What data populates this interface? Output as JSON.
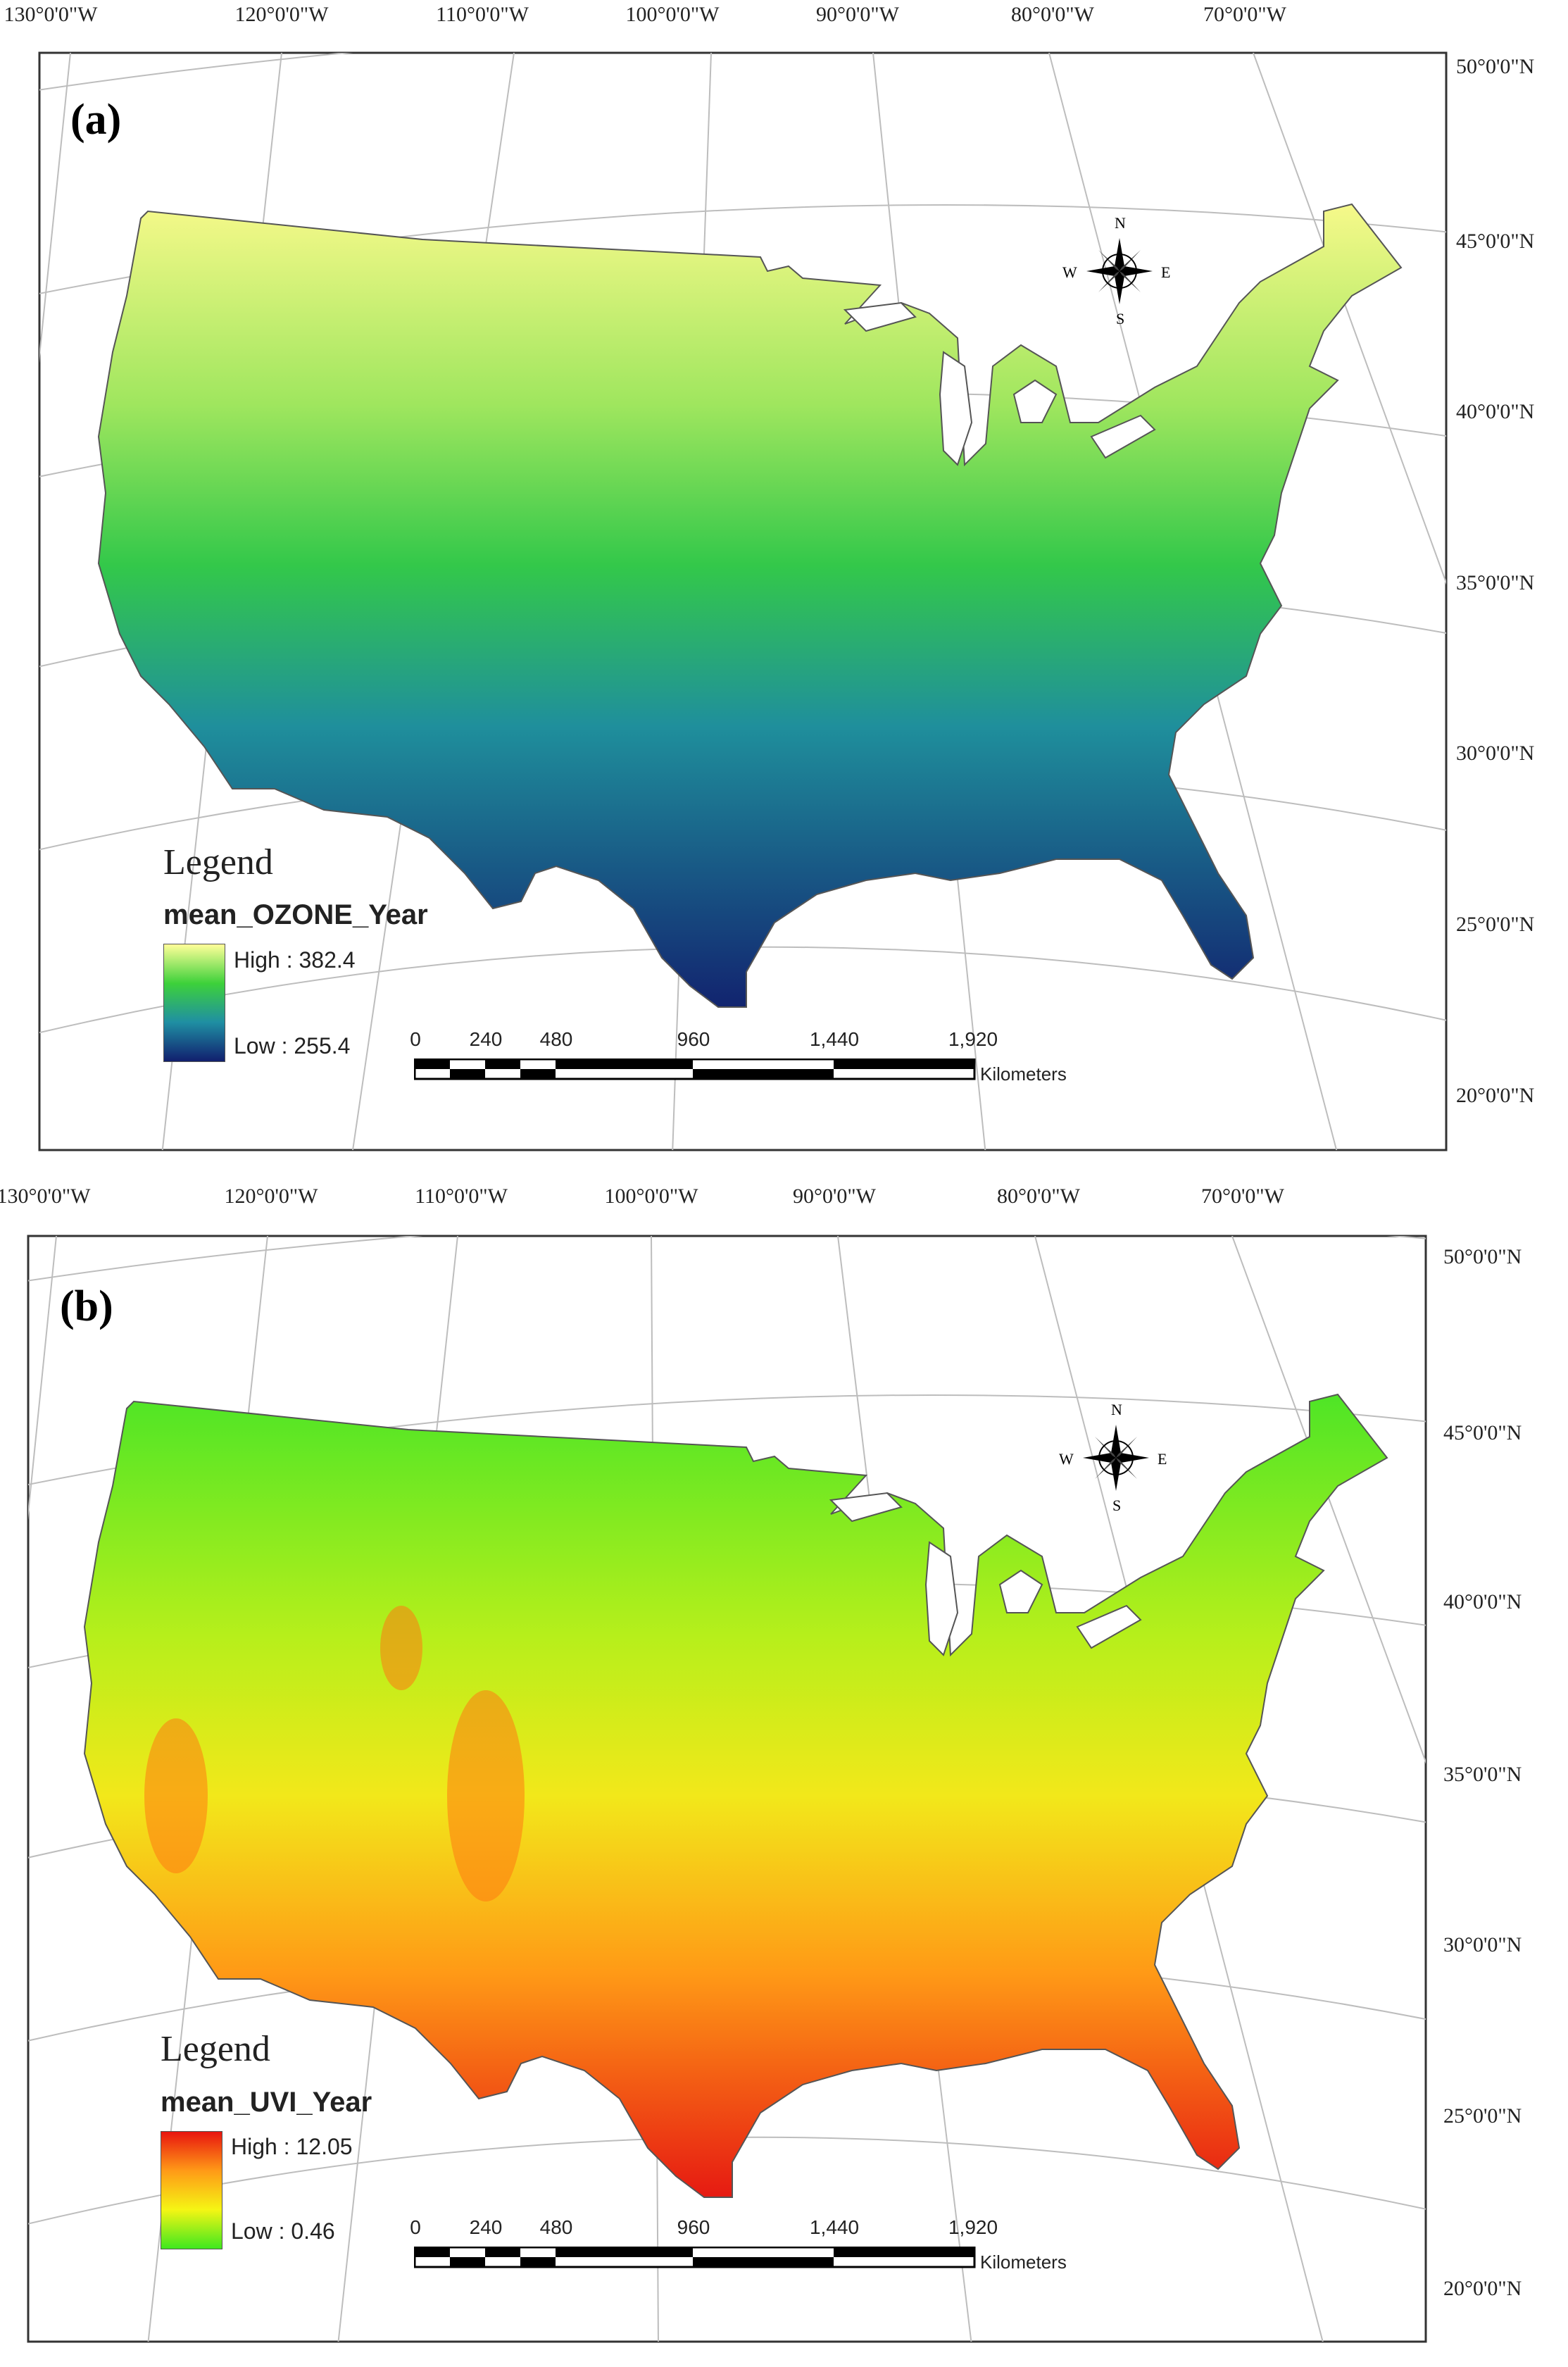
{
  "panels": [
    {
      "label": "(a)",
      "legend_title": "Legend",
      "field": "mean_OZONE_Year",
      "high": "High : 382.4",
      "low": "Low : 255.4",
      "ramp_colors": [
        "#ffff99",
        "#3dd13a",
        "#1f8fa3",
        "#111f6e"
      ],
      "map_colors": {
        "north": "#f6f98a",
        "upper": "#9fe65e",
        "middle": "#33c84a",
        "lower": "#1f8f9c",
        "south": "#12246f"
      }
    },
    {
      "label": "(b)",
      "legend_title": "Legend",
      "field": "mean_UVI_Year",
      "high": "High : 12.05",
      "low": "Low : 0.46",
      "ramp_colors": [
        "#e8150f",
        "#ff9a17",
        "#f5f514",
        "#3fe81f"
      ],
      "map_colors": {
        "north": "#4ee526",
        "upper": "#b6ef1b",
        "middle": "#f2e81a",
        "lower": "#ff9a16",
        "south": "#e61a12"
      }
    }
  ],
  "longitude_labels": [
    "130°0'0\"W",
    "120°0'0\"W",
    "110°0'0\"W",
    "100°0'0\"W",
    "90°0'0\"W",
    "80°0'0\"W",
    "70°0'0\"W"
  ],
  "latitude_labels": [
    "50°0'0\"N",
    "45°0'0\"N",
    "40°0'0\"N",
    "35°0'0\"N",
    "30°0'0\"N",
    "25°0'0\"N",
    "20°0'0\"N"
  ],
  "scale_ticks": [
    "0",
    "240",
    "480",
    "960",
    "1,440",
    "1,920"
  ],
  "scale_unit": "Kilometers",
  "compass": {
    "n": "N",
    "s": "S",
    "e": "E",
    "w": "W"
  }
}
